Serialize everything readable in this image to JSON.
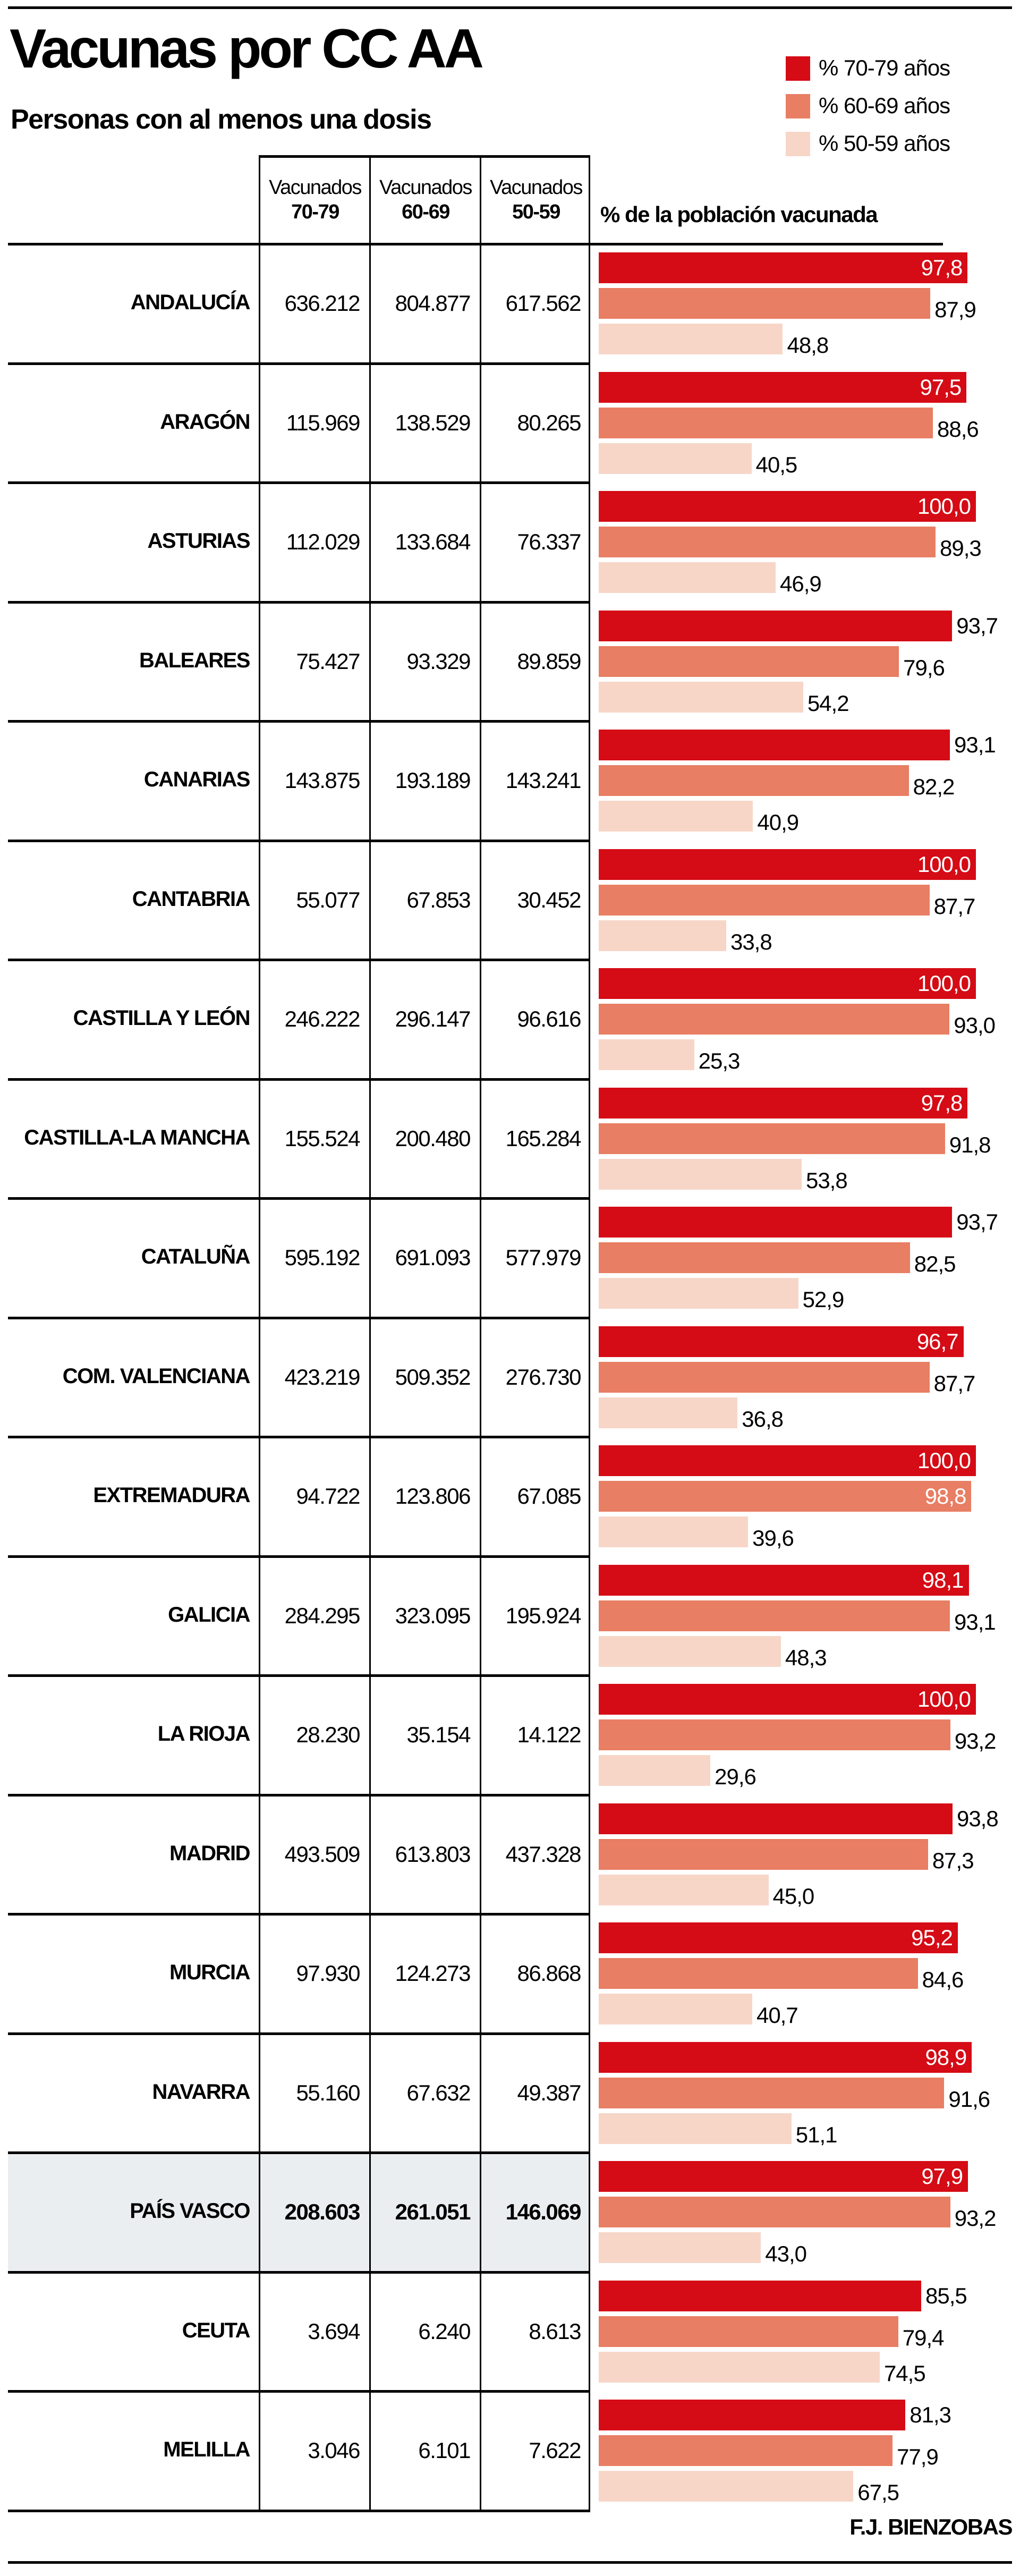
{
  "title": "Vacunas por CC AA",
  "subtitle": "Personas con al menos una dosis",
  "legend": [
    {
      "label": "% 70-79 años",
      "color": "#d50b15"
    },
    {
      "label": "% 60-69 años",
      "color": "#e87e63"
    },
    {
      "label": "% 50-59 años",
      "color": "#f7d6c8"
    }
  ],
  "columns": [
    {
      "top": "Vacunados",
      "bottom": "70-79"
    },
    {
      "top": "Vacunados",
      "bottom": "60-69"
    },
    {
      "top": "Vacunados",
      "bottom": "50-59"
    }
  ],
  "pct_header": "% de la población vacunada",
  "credit": "F.J. BIENZOBAS",
  "chart_data": {
    "type": "table",
    "title": "Vacunas por CC AA",
    "subtitle": "Personas con al menos una dosis",
    "series_names": [
      "% 70-79 años",
      "% 60-69 años",
      "% 50-59 años"
    ],
    "xlim": [
      0,
      100
    ],
    "rows": [
      {
        "name": "ANDALUCÍA",
        "vac": [
          "636.212",
          "804.877",
          "617.562"
        ],
        "pct": [
          97.8,
          87.9,
          48.8
        ],
        "pct_label": [
          "97,8",
          "87,9",
          "48,8"
        ]
      },
      {
        "name": "ARAGÓN",
        "vac": [
          "115.969",
          "138.529",
          "80.265"
        ],
        "pct": [
          97.5,
          88.6,
          40.5
        ],
        "pct_label": [
          "97,5",
          "88,6",
          "40,5"
        ]
      },
      {
        "name": "ASTURIAS",
        "vac": [
          "112.029",
          "133.684",
          "76.337"
        ],
        "pct": [
          100.0,
          89.3,
          46.9
        ],
        "pct_label": [
          "100,0",
          "89,3",
          "46,9"
        ]
      },
      {
        "name": "BALEARES",
        "vac": [
          "75.427",
          "93.329",
          "89.859"
        ],
        "pct": [
          93.7,
          79.6,
          54.2
        ],
        "pct_label": [
          "93,7",
          "79,6",
          "54,2"
        ]
      },
      {
        "name": "CANARIAS",
        "vac": [
          "143.875",
          "193.189",
          "143.241"
        ],
        "pct": [
          93.1,
          82.2,
          40.9
        ],
        "pct_label": [
          "93,1",
          "82,2",
          "40,9"
        ]
      },
      {
        "name": "CANTABRIA",
        "vac": [
          "55.077",
          "67.853",
          "30.452"
        ],
        "pct": [
          100.0,
          87.7,
          33.8
        ],
        "pct_label": [
          "100,0",
          "87,7",
          "33,8"
        ]
      },
      {
        "name": "CASTILLA Y LEÓN",
        "vac": [
          "246.222",
          "296.147",
          "96.616"
        ],
        "pct": [
          100.0,
          93.0,
          25.3
        ],
        "pct_label": [
          "100,0",
          "93,0",
          "25,3"
        ]
      },
      {
        "name": "CASTILLA-LA MANCHA",
        "vac": [
          "155.524",
          "200.480",
          "165.284"
        ],
        "pct": [
          97.8,
          91.8,
          53.8
        ],
        "pct_label": [
          "97,8",
          "91,8",
          "53,8"
        ]
      },
      {
        "name": "CATALUÑA",
        "vac": [
          "595.192",
          "691.093",
          "577.979"
        ],
        "pct": [
          93.7,
          82.5,
          52.9
        ],
        "pct_label": [
          "93,7",
          "82,5",
          "52,9"
        ]
      },
      {
        "name": "COM. VALENCIANA",
        "vac": [
          "423.219",
          "509.352",
          "276.730"
        ],
        "pct": [
          96.7,
          87.7,
          36.8
        ],
        "pct_label": [
          "96,7",
          "87,7",
          "36,8"
        ]
      },
      {
        "name": "EXTREMADURA",
        "vac": [
          "94.722",
          "123.806",
          "67.085"
        ],
        "pct": [
          100.0,
          98.8,
          39.6
        ],
        "pct_label": [
          "100,0",
          "98,8",
          "39,6"
        ]
      },
      {
        "name": "GALICIA",
        "vac": [
          "284.295",
          "323.095",
          "195.924"
        ],
        "pct": [
          98.1,
          93.1,
          48.3
        ],
        "pct_label": [
          "98,1",
          "93,1",
          "48,3"
        ]
      },
      {
        "name": "LA RIOJA",
        "vac": [
          "28.230",
          "35.154",
          "14.122"
        ],
        "pct": [
          100.0,
          93.2,
          29.6
        ],
        "pct_label": [
          "100,0",
          "93,2",
          "29,6"
        ]
      },
      {
        "name": "MADRID",
        "vac": [
          "493.509",
          "613.803",
          "437.328"
        ],
        "pct": [
          93.8,
          87.3,
          45.0
        ],
        "pct_label": [
          "93,8",
          "87,3",
          "45,0"
        ]
      },
      {
        "name": "MURCIA",
        "vac": [
          "97.930",
          "124.273",
          "86.868"
        ],
        "pct": [
          95.2,
          84.6,
          40.7
        ],
        "pct_label": [
          "95,2",
          "84,6",
          "40,7"
        ]
      },
      {
        "name": "NAVARRA",
        "vac": [
          "55.160",
          "67.632",
          "49.387"
        ],
        "pct": [
          98.9,
          91.6,
          51.1
        ],
        "pct_label": [
          "98,9",
          "91,6",
          "51,1"
        ]
      },
      {
        "name": "PAÍS VASCO",
        "vac": [
          "208.603",
          "261.051",
          "146.069"
        ],
        "pct": [
          97.9,
          93.2,
          43.0
        ],
        "pct_label": [
          "97,9",
          "93,2",
          "43,0"
        ],
        "highlight": true
      },
      {
        "name": "CEUTA",
        "vac": [
          "3.694",
          "6.240",
          "8.613"
        ],
        "pct": [
          85.5,
          79.4,
          74.5
        ],
        "pct_label": [
          "85,5",
          "79,4",
          "74,5"
        ]
      },
      {
        "name": "MELILLA",
        "vac": [
          "3.046",
          "6.101",
          "7.622"
        ],
        "pct": [
          81.3,
          77.9,
          67.5
        ],
        "pct_label": [
          "81,3",
          "77,9",
          "67,5"
        ]
      }
    ]
  }
}
